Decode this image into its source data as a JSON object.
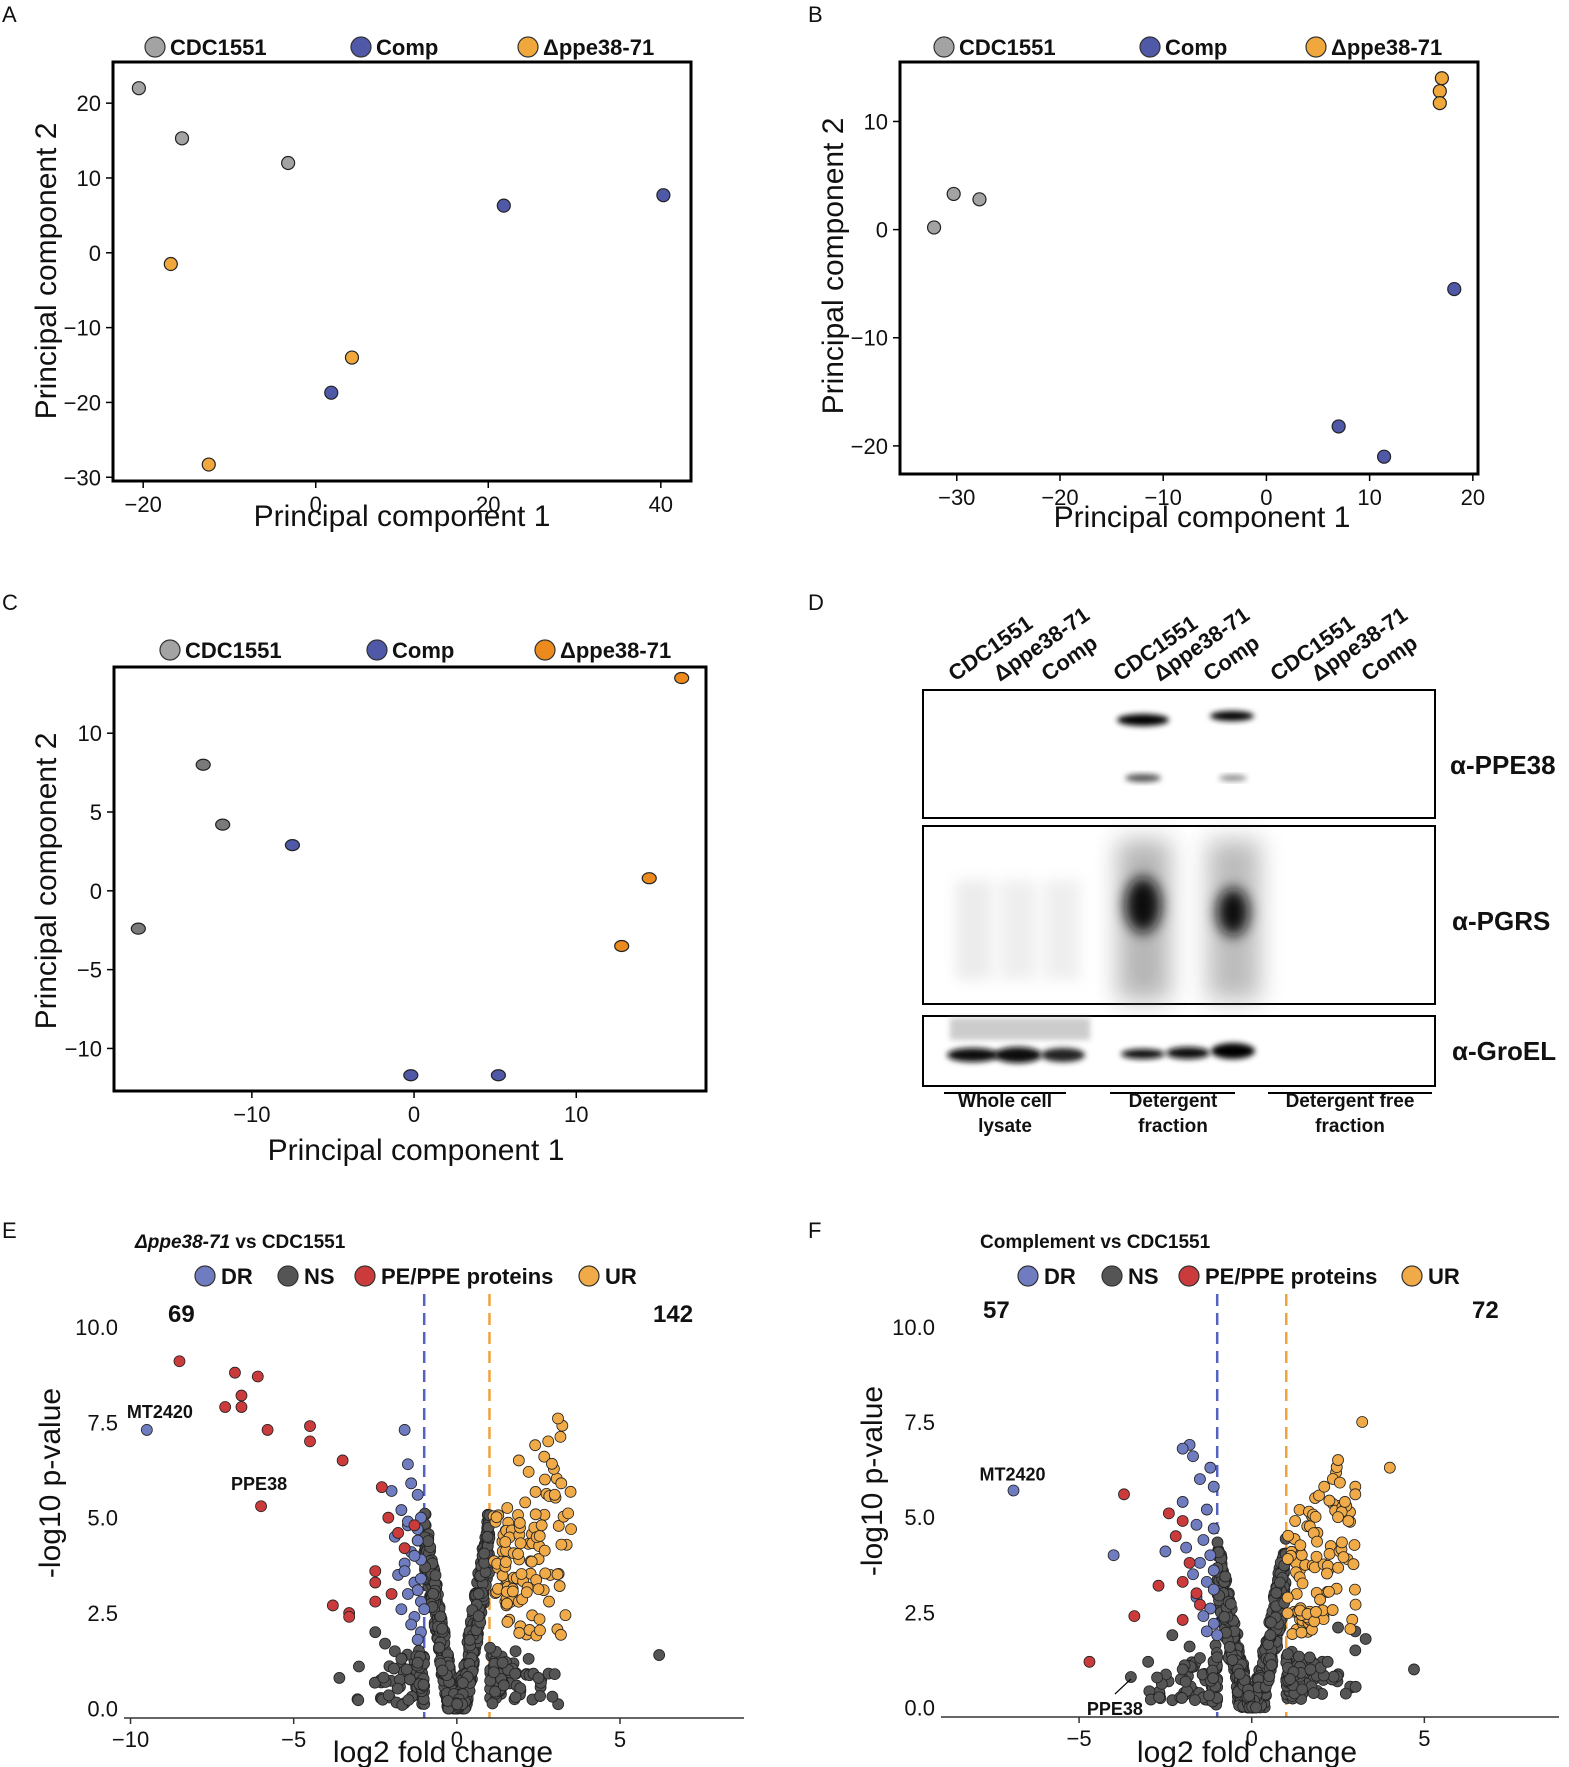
{
  "colors": {
    "CDC1551": "#a3a3a3",
    "Comp": "#4f59a8",
    "delta": "#f0a83c",
    "delta_dark": "#ec8a1e",
    "cdc_dark": "#7a7a7a",
    "DR": "#6f7cc0",
    "NS": "#555555",
    "PE": "#cc3b3b",
    "UR": "#f0ab48",
    "dr_line": "#5463c0",
    "ur_line": "#f0a23c"
  },
  "chart_data": [
    {
      "panel": "A",
      "type": "scatter",
      "xlabel": "Principal component 1",
      "ylabel": "Principal component 2",
      "xlim": [
        -23.5,
        43.5
      ],
      "ylim": [
        -30.5,
        25.5
      ],
      "xticks": [
        -20,
        0,
        20,
        40
      ],
      "yticks": [
        20,
        10,
        0,
        -10,
        -20,
        -30
      ],
      "legend": [
        "CDC1551",
        "Comp",
        "Δppe38-71"
      ],
      "series": [
        {
          "name": "CDC1551",
          "color_key": "CDC1551",
          "points": [
            [
              -20.5,
              22
            ],
            [
              -15.5,
              15.3
            ],
            [
              -3.2,
              12
            ]
          ]
        },
        {
          "name": "Comp",
          "color_key": "Comp",
          "points": [
            [
              21.8,
              6.3
            ],
            [
              40.3,
              7.7
            ],
            [
              1.8,
              -18.7
            ]
          ]
        },
        {
          "name": "Δppe38-71",
          "color_key": "delta",
          "points": [
            [
              -16.8,
              -1.5
            ],
            [
              4.2,
              -14
            ],
            [
              -12.4,
              -28.3
            ]
          ]
        }
      ]
    },
    {
      "panel": "B",
      "type": "scatter",
      "xlabel": "Principal component 1",
      "ylabel": "Principal component 2",
      "xlim": [
        -35.5,
        20.5
      ],
      "ylim": [
        -22.6,
        15.5
      ],
      "xticks": [
        -30,
        -20,
        -10,
        0,
        10,
        20
      ],
      "yticks": [
        10,
        0,
        -10,
        -20
      ],
      "legend": [
        "CDC1551",
        "Comp",
        "Δppe38-71"
      ],
      "series": [
        {
          "name": "CDC1551",
          "color_key": "CDC1551",
          "points": [
            [
              -32.2,
              0.2
            ],
            [
              -30.3,
              3.3
            ],
            [
              -27.8,
              2.8
            ]
          ]
        },
        {
          "name": "Comp",
          "color_key": "Comp",
          "points": [
            [
              18.2,
              -5.5
            ],
            [
              7.0,
              -18.2
            ],
            [
              11.4,
              -21
            ]
          ]
        },
        {
          "name": "Δppe38-71",
          "color_key": "delta",
          "points": [
            [
              17.0,
              14
            ],
            [
              16.8,
              12.8
            ],
            [
              16.8,
              11.7
            ]
          ]
        }
      ]
    },
    {
      "panel": "C",
      "type": "scatter",
      "xlabel": "Principal component 1",
      "ylabel": "Principal component 2",
      "xlim": [
        -18.5,
        18.0
      ],
      "ylim": [
        -12.7,
        14.2
      ],
      "xticks": [
        -10,
        0,
        10
      ],
      "yticks": [
        10,
        5,
        0,
        -5,
        -10
      ],
      "legend": [
        "CDC1551",
        "Comp",
        "Δppe38-71"
      ],
      "series": [
        {
          "name": "CDC1551",
          "color_key": "cdc_dark",
          "points": [
            [
              -17.0,
              -2.4
            ],
            [
              -13.0,
              8.0
            ],
            [
              -11.8,
              4.2
            ]
          ]
        },
        {
          "name": "Comp",
          "color_key": "Comp",
          "points": [
            [
              -7.5,
              2.9
            ],
            [
              -0.2,
              -11.7
            ],
            [
              5.2,
              -11.7
            ]
          ]
        },
        {
          "name": "Δppe38-71",
          "color_key": "delta_dark",
          "points": [
            [
              16.5,
              13.5
            ],
            [
              14.5,
              0.8
            ],
            [
              12.8,
              -3.5
            ]
          ]
        }
      ]
    },
    {
      "panel": "E",
      "type": "scatter",
      "title_italic": "Δppe38-71",
      "title_rest": " vs CDC1551",
      "xlabel": "log2 fold change",
      "ylabel": "-log10 p-value",
      "xlim": [
        -10.2,
        8.8
      ],
      "ylim": [
        -0.25,
        10.6
      ],
      "xticks": [
        -10,
        -5,
        0,
        5
      ],
      "yticks": [
        "0.0",
        "2.5",
        "5.0",
        "7.5",
        "10.0"
      ],
      "threshold_lines": [
        -1,
        1
      ],
      "legend": [
        "DR",
        "NS",
        "PE/PPE proteins",
        "UR"
      ],
      "count_down": "69",
      "count_up": "142",
      "annotations": [
        {
          "label": "MT2420",
          "point": [
            -9.5,
            7.3
          ]
        },
        {
          "label": "PPE38",
          "point": [
            -6.0,
            5.3
          ]
        }
      ],
      "pe_points": [
        [
          -8.5,
          9.1
        ],
        [
          -6.8,
          8.8
        ],
        [
          -6.1,
          8.7
        ],
        [
          -6.6,
          8.2
        ],
        [
          -7.1,
          7.9
        ],
        [
          -6.6,
          7.9
        ],
        [
          -4.5,
          7.4
        ],
        [
          -5.8,
          7.3
        ],
        [
          -4.5,
          7.0
        ],
        [
          -3.5,
          6.5
        ],
        [
          -6.0,
          5.3
        ],
        [
          -2.3,
          5.8
        ],
        [
          -2.1,
          5.0
        ],
        [
          -1.8,
          4.6
        ],
        [
          -2.5,
          3.6
        ],
        [
          -2.5,
          3.3
        ],
        [
          -2.0,
          3.0
        ],
        [
          -3.8,
          2.7
        ],
        [
          -3.3,
          2.5
        ],
        [
          -3.3,
          2.4
        ],
        [
          -2.5,
          2.8
        ],
        [
          -1.3,
          4.8
        ],
        [
          -1.6,
          4.2
        ]
      ],
      "dr_points": [
        [
          -9.5,
          7.3
        ],
        [
          -1.6,
          7.3
        ],
        [
          -1.5,
          6.4
        ],
        [
          -1.4,
          5.9
        ],
        [
          -2.0,
          5.7
        ],
        [
          -1.2,
          5.6
        ],
        [
          -1.7,
          5.2
        ],
        [
          -1.1,
          5.0
        ],
        [
          -1.5,
          4.8
        ],
        [
          -1.9,
          4.5
        ],
        [
          -1.2,
          4.4
        ],
        [
          -1.4,
          4.1
        ],
        [
          -1.1,
          3.9
        ],
        [
          -1.6,
          3.8
        ],
        [
          -1.8,
          3.5
        ],
        [
          -1.3,
          3.3
        ],
        [
          -1.2,
          3.1
        ],
        [
          -1.5,
          3.0
        ],
        [
          -1.1,
          2.8
        ],
        [
          -1.7,
          2.6
        ],
        [
          -1.3,
          2.4
        ],
        [
          -1.4,
          2.2
        ],
        [
          -1.1,
          2.0
        ],
        [
          -1.2,
          1.8
        ],
        [
          -1.5,
          4.9
        ],
        [
          -1.2,
          4.7
        ],
        [
          -1.3,
          4.0
        ],
        [
          -1.6,
          3.6
        ],
        [
          -1.1,
          3.4
        ],
        [
          -1.0,
          2.6
        ]
      ],
      "ns_extra": [
        [
          6.2,
          1.4
        ],
        [
          -3.6,
          0.8
        ],
        [
          -2.2,
          1.7
        ],
        [
          -1.9,
          1.5
        ],
        [
          -1.7,
          1.3
        ],
        [
          -3.0,
          1.1
        ],
        [
          -1.2,
          1.2
        ],
        [
          2.5,
          0.8
        ],
        [
          3.0,
          0.9
        ],
        [
          2.2,
          1.3
        ],
        [
          1.8,
          1.5
        ],
        [
          1.4,
          1.2
        ],
        [
          -2.5,
          2.0
        ]
      ],
      "ur_cols": [
        1.35,
        1.7,
        2.1,
        2.5,
        2.9,
        3.3
      ],
      "ur_tops": [
        5.3,
        5.2,
        5.6,
        5.8,
        6.9,
        7.5
      ],
      "ur_extra": [
        [
          2.4,
          6.9
        ],
        [
          3.1,
          7.6
        ],
        [
          2.8,
          7.0
        ],
        [
          3.2,
          5.9
        ],
        [
          2.7,
          6.0
        ],
        [
          3.5,
          4.7
        ],
        [
          3.0,
          5.6
        ],
        [
          2.6,
          4.8
        ],
        [
          2.2,
          6.2
        ],
        [
          1.9,
          6.5
        ]
      ],
      "ns_spread": 3.6,
      "ns_max_y": 5.6
    },
    {
      "panel": "F",
      "type": "scatter",
      "title_italic": "",
      "title_rest": "Complement vs CDC1551",
      "xlabel": "log2 fold change",
      "ylabel": "-log10 p-value",
      "xlim": [
        -9.0,
        8.9
      ],
      "ylim": [
        -0.25,
        10.6
      ],
      "xticks": [
        -5,
        0,
        5
      ],
      "yticks": [
        "0.0",
        "2.5",
        "5.0",
        "7.5",
        "10.0"
      ],
      "threshold_lines": [
        -1,
        1
      ],
      "legend": [
        "DR",
        "NS",
        "PE/PPE proteins",
        "UR"
      ],
      "count_down": "57",
      "count_up": "72",
      "annotations": [
        {
          "label": "MT2420",
          "point": [
            -6.9,
            5.7
          ]
        },
        {
          "label": "PPE38",
          "point": [
            -3.5,
            0.8
          ]
        }
      ],
      "pe_points": [
        [
          -3.7,
          5.6
        ],
        [
          -2.4,
          5.1
        ],
        [
          -2.2,
          4.5
        ],
        [
          -2.0,
          4.9
        ],
        [
          -1.8,
          3.8
        ],
        [
          -2.7,
          3.2
        ],
        [
          -3.4,
          2.4
        ],
        [
          -2.0,
          3.3
        ],
        [
          -1.6,
          3.0
        ],
        [
          -2.0,
          2.3
        ],
        [
          -4.7,
          1.2
        ],
        [
          -1.5,
          2.7
        ]
      ],
      "dr_points": [
        [
          -6.9,
          5.7
        ],
        [
          -1.8,
          6.9
        ],
        [
          -2.0,
          6.8
        ],
        [
          -1.7,
          6.6
        ],
        [
          -1.2,
          6.3
        ],
        [
          -1.5,
          6.0
        ],
        [
          -1.1,
          5.8
        ],
        [
          -2.0,
          5.4
        ],
        [
          -1.3,
          5.2
        ],
        [
          -1.6,
          4.8
        ],
        [
          -1.1,
          4.7
        ],
        [
          -1.4,
          4.4
        ],
        [
          -1.9,
          4.2
        ],
        [
          -1.2,
          4.0
        ],
        [
          -1.5,
          3.8
        ],
        [
          -1.1,
          3.6
        ],
        [
          -1.7,
          3.5
        ],
        [
          -1.3,
          3.3
        ],
        [
          -1.1,
          3.1
        ],
        [
          -1.6,
          2.9
        ],
        [
          -1.2,
          2.6
        ],
        [
          -1.4,
          2.4
        ],
        [
          -1.1,
          2.2
        ],
        [
          -1.3,
          2.0
        ],
        [
          -1.0,
          1.9
        ],
        [
          -4.0,
          4.0
        ],
        [
          -2.5,
          4.1
        ]
      ],
      "ns_extra": [
        [
          4.7,
          1.0
        ],
        [
          -3.0,
          1.2
        ],
        [
          -2.0,
          1.0
        ],
        [
          -1.8,
          1.6
        ],
        [
          -1.5,
          1.3
        ],
        [
          -3.5,
          0.8
        ],
        [
          3.0,
          1.5
        ],
        [
          2.5,
          2.1
        ],
        [
          3.3,
          1.8
        ],
        [
          2.2,
          1.2
        ],
        [
          1.7,
          1.0
        ],
        [
          -2.3,
          1.9
        ],
        [
          3.0,
          2.0
        ]
      ],
      "ur_cols": [
        1.25,
        1.6,
        2.0,
        2.4,
        2.8
      ],
      "ur_tops": [
        4.9,
        5.2,
        6.0,
        6.5,
        6.2
      ],
      "ur_extra": [
        [
          3.2,
          7.5
        ],
        [
          4.0,
          6.3
        ],
        [
          2.5,
          6.5
        ],
        [
          3.0,
          5.8
        ],
        [
          2.7,
          5.4
        ],
        [
          3.0,
          5.6
        ],
        [
          2.5,
          5.0
        ],
        [
          2.8,
          4.9
        ],
        [
          2.1,
          5.8
        ]
      ],
      "ns_spread": 3.2,
      "ns_max_y": 4.7
    }
  ],
  "blot": {
    "panel": "D",
    "lanes": [
      "CDC1551",
      "Δppe38-71",
      "Comp",
      "CDC1551",
      "Δppe38-71",
      "Comp",
      "CDC1551",
      "Δppe38-71",
      "Comp"
    ],
    "antibodies": [
      "α-PPE38",
      "α-PGRS",
      "α-GroEL"
    ],
    "fractions": [
      {
        "line1": "Whole cell",
        "line2": "lysate"
      },
      {
        "line1": "Detergent",
        "line2": "fraction"
      },
      {
        "line1": "Detergent free",
        "line2": "fraction"
      }
    ]
  },
  "panel_letters": [
    "A",
    "B",
    "C",
    "D",
    "E",
    "F"
  ]
}
